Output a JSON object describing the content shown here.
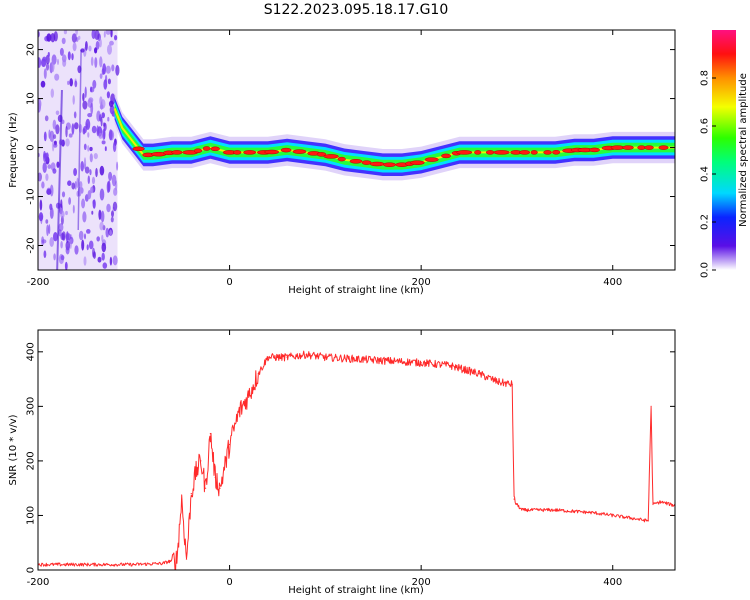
{
  "title": "S122.2023.095.18.17.G10",
  "chart_data": [
    {
      "type": "heatmap",
      "xlabel": "Height of straight line (km)",
      "ylabel": "Frequency (Hz)",
      "xlim": [
        -200,
        465
      ],
      "ylim": [
        -25,
        24
      ],
      "xticks": [
        -200,
        0,
        200,
        400
      ],
      "yticks": [
        -20,
        -10,
        0,
        10,
        20
      ],
      "colorbar": {
        "label": "Normalized spectral amplitude",
        "range": [
          0,
          1
        ],
        "ticks": [
          "0.0",
          "0.2",
          "0.4",
          "0.6",
          "0.8"
        ]
      },
      "ridge": {
        "x": [
          -120,
          -112,
          -100,
          -90,
          -80,
          -60,
          -40,
          -20,
          0,
          20,
          40,
          60,
          80,
          100,
          120,
          140,
          160,
          180,
          200,
          220,
          240,
          260,
          280,
          300,
          320,
          340,
          360,
          380,
          400,
          420,
          440,
          465
        ],
        "freq": [
          8,
          4,
          1,
          -1.5,
          -1.5,
          -1,
          -1,
          0,
          -1,
          -1,
          -1,
          -0.5,
          -1,
          -1.5,
          -2.5,
          -3,
          -3.5,
          -3.5,
          -3,
          -2,
          -1,
          -1,
          -1,
          -1,
          -1,
          -1,
          -0.5,
          -0.5,
          0,
          0,
          0,
          0
        ]
      },
      "noise_region_x": [
        -200,
        -117
      ]
    },
    {
      "type": "line",
      "xlabel": "Height of straight line (km)",
      "ylabel": "SNR (10 * v/v)",
      "xlim": [
        -200,
        465
      ],
      "ylim": [
        0,
        440
      ],
      "xticks": [
        -200,
        0,
        200,
        400
      ],
      "yticks": [
        0,
        100,
        200,
        300,
        400
      ],
      "series": [
        {
          "color": "#ff2a2a",
          "x": [
            -200,
            -150,
            -100,
            -70,
            -55,
            -50,
            -45,
            -40,
            -35,
            -30,
            -25,
            -20,
            -15,
            -10,
            0,
            10,
            20,
            30,
            40,
            60,
            80,
            100,
            150,
            200,
            230,
            260,
            280,
            295,
            297,
            300,
            305,
            340,
            380,
            420,
            437,
            440,
            442,
            450,
            465
          ],
          "y": [
            10,
            10,
            10,
            12,
            20,
            130,
            20,
            140,
            180,
            200,
            150,
            250,
            170,
            150,
            230,
            290,
            320,
            360,
            390,
            390,
            395,
            390,
            385,
            380,
            375,
            360,
            345,
            340,
            130,
            120,
            110,
            110,
            105,
            95,
            90,
            300,
            120,
            125,
            118
          ]
        }
      ]
    }
  ]
}
